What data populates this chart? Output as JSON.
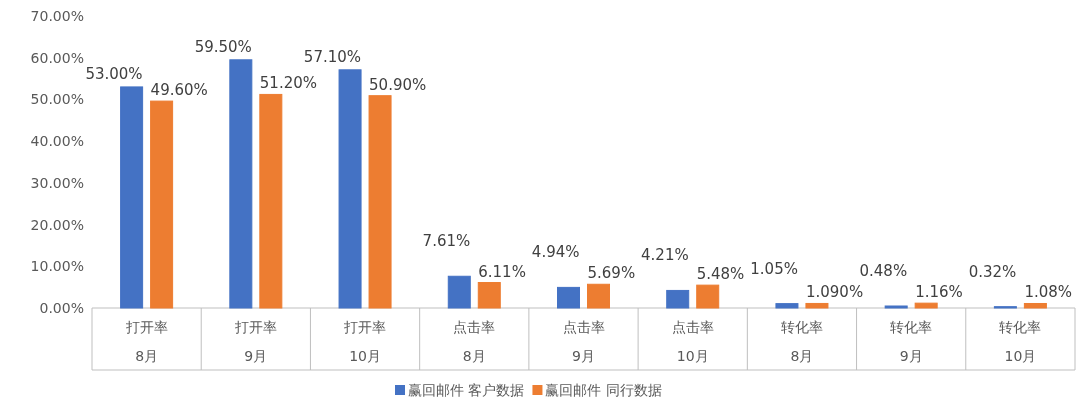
{
  "chart_data": {
    "type": "bar",
    "categories": [
      "打开率 8月",
      "打开率 9月",
      "打开率 10月",
      "点击率 8月",
      "点击率 9月",
      "点击率 10月",
      "转化率 8月",
      "转化率 9月",
      "转化率 10月"
    ],
    "series": [
      {
        "name": "赢回邮件 客户数据",
        "color": "#4472c4",
        "values": [
          53.0,
          59.5,
          57.1,
          7.61,
          4.94,
          4.21,
          1.05,
          0.48,
          0.32
        ],
        "value_labels": [
          "53.00%",
          "59.50%",
          "57.10%",
          "7.61%",
          "4.94%",
          "4.21%",
          "1.05%",
          "0.48%",
          "0.32%"
        ]
      },
      {
        "name": "赢回邮件 同行数据",
        "color": "#ed7d31",
        "values": [
          49.6,
          51.2,
          50.9,
          6.11,
          5.69,
          5.48,
          1.09,
          1.16,
          1.08
        ],
        "value_labels": [
          "49.60%",
          "51.20%",
          "50.90%",
          "6.11%",
          "5.69%",
          "5.48%",
          "1.090%",
          "1.16%",
          "1.08%"
        ]
      }
    ],
    "ylim": [
      0,
      70
    ],
    "yticks": [
      {
        "value": 0,
        "label": "0.00%"
      },
      {
        "value": 10,
        "label": "10.00%"
      },
      {
        "value": 20,
        "label": "20.00%"
      },
      {
        "value": 30,
        "label": "30.00%"
      },
      {
        "value": 40,
        "label": "40.00%"
      },
      {
        "value": 50,
        "label": "50.00%"
      },
      {
        "value": 60,
        "label": "60.00%"
      },
      {
        "value": 70,
        "label": "70.00%"
      }
    ],
    "grid": false,
    "legend": "bottom"
  }
}
